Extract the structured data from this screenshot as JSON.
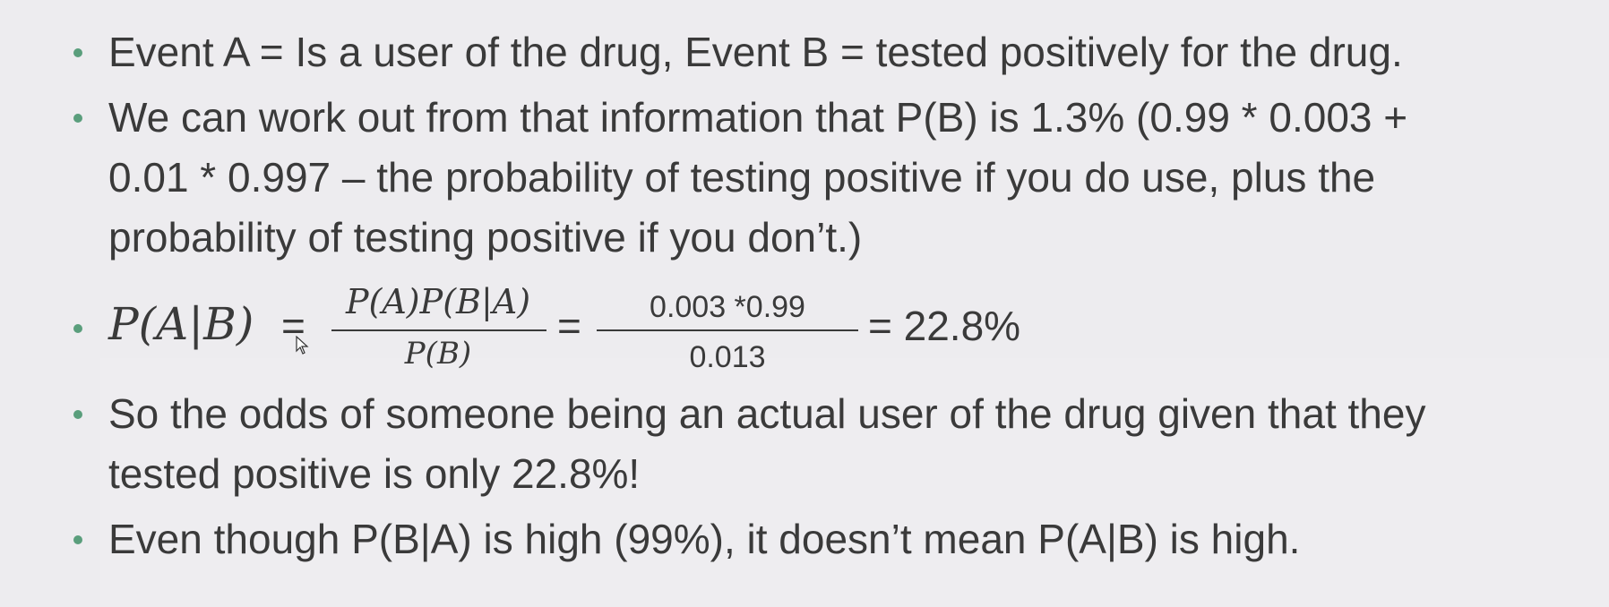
{
  "bullets": {
    "b1": {
      "line1": "Event A = Is a user of the drug, Event B = tested positively for the drug."
    },
    "b2": {
      "line1": "We can work out from that information that P(B) is 1.3% (0.99 * 0.003 +",
      "line2": "0.01 * 0.997 – the probability of testing positive if you do use, plus the",
      "line3": "probability of testing positive if you don’t.)"
    },
    "b3": {
      "lhs": "P(A|B)",
      "eq1": "=",
      "frac1_num": "P(A)P(B|A)",
      "frac1_den": "P(B)",
      "eq2": "=",
      "frac2_num": "0.003 *0.99",
      "frac2_den": "0.013",
      "eq3_result": "= 22.8%"
    },
    "b4": {
      "line1": "So the odds of someone being an actual user of the drug given that they",
      "line2": "tested positive is only 22.8%!"
    },
    "b5": {
      "line1": "Even though P(B|A) is high (99%), it doesn’t mean P(A|B) is high."
    }
  },
  "colors": {
    "background": "#edecef",
    "text": "#3a3a3a",
    "bullet": "#5a9e7c"
  },
  "icons": {
    "cursor": "mouse-pointer-icon"
  }
}
